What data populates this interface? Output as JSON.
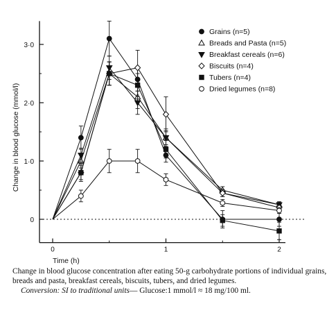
{
  "chart_data": {
    "type": "line",
    "title": "",
    "xlabel": "Time (h)",
    "ylabel": "Change in blood glucose (mmol/l)",
    "xlim": [
      0,
      2
    ],
    "ylim": [
      -0.4,
      3.4
    ],
    "x_ticks": [
      0,
      1,
      2
    ],
    "x_tick_labels": [
      "0",
      "1",
      "2"
    ],
    "y_ticks": [
      0,
      1,
      2,
      3
    ],
    "y_tick_labels": [
      "0",
      "1·0",
      "2·0",
      "3·0"
    ],
    "grid": false,
    "baseline": 0,
    "legend_position": "top-right",
    "x": [
      0,
      0.25,
      0.5,
      0.75,
      1,
      1.5,
      2
    ],
    "series": [
      {
        "name": "Grains (n=5)",
        "marker": "filled-circle",
        "values": [
          0,
          1.4,
          3.1,
          2.4,
          1.1,
          0,
          0
        ],
        "error": [
          0,
          0.2,
          0.3,
          0.2,
          0.12,
          0.15,
          0.12
        ]
      },
      {
        "name": "Breads and Pasta (n=5)",
        "marker": "open-triangle-up",
        "values": [
          0,
          1.0,
          2.5,
          2.1,
          1.4,
          0.5,
          0.25
        ],
        "error": [
          0,
          0.12,
          0.2,
          0.2,
          0.15,
          0.06,
          0.05
        ]
      },
      {
        "name": "Breakfast cereals (n=6)",
        "marker": "filled-triangle-down",
        "values": [
          0,
          1.1,
          2.6,
          2.0,
          1.4,
          0.45,
          0.25
        ],
        "error": [
          0,
          0.12,
          0.2,
          0.2,
          0.12,
          0.06,
          0.05
        ]
      },
      {
        "name": "Biscuits (n=4)",
        "marker": "open-diamond",
        "values": [
          0,
          0.8,
          2.5,
          2.6,
          1.8,
          0.45,
          0.2
        ],
        "error": [
          0,
          0.12,
          0.2,
          0.3,
          0.3,
          0.06,
          0.05
        ]
      },
      {
        "name": "Tubers (n=4)",
        "marker": "filled-square",
        "values": [
          0,
          0.8,
          2.5,
          2.3,
          1.2,
          -0.02,
          -0.2
        ],
        "error": [
          0,
          0.15,
          0.2,
          0.2,
          0.15,
          0.1,
          0.15
        ]
      },
      {
        "name": "Dried legumes (n=8)",
        "marker": "open-circle",
        "values": [
          0,
          0.4,
          1.0,
          1.0,
          0.68,
          0.28,
          0.15
        ],
        "error": [
          0,
          0.1,
          0.2,
          0.2,
          0.1,
          0.06,
          0.05
        ]
      }
    ]
  },
  "legend": [
    {
      "label": "Grains",
      "n": "(n=5)"
    },
    {
      "label": "Breads and Pasta",
      "n": "(n=5)"
    },
    {
      "label": "Breakfast cereals",
      "n": "(n=6)"
    },
    {
      "label": "Biscuits",
      "n": "(n=4)"
    },
    {
      "label": "Tubers",
      "n": "(n=4)"
    },
    {
      "label": "Dried legumes",
      "n": "(n=8)"
    }
  ],
  "caption": {
    "line1": "Change in blood glucose concentration after eating 50-g carbohydrate portions of individual grains, breads and pasta, breakfast cereals, biscuits, tubers, and dried legumes.",
    "conversion_label": "Conversion: SI to traditional units",
    "conversion_text": "— Glucose:1 mmol/l ≈ 18 mg/100 ml."
  }
}
